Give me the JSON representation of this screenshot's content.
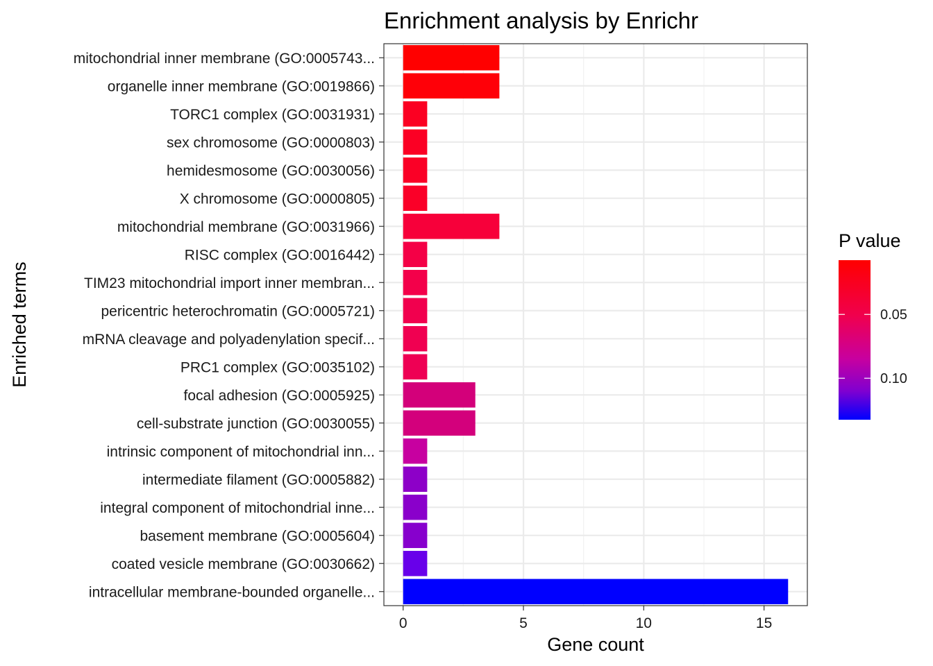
{
  "chart_data": {
    "type": "bar",
    "orientation": "horizontal",
    "title": "Enrichment analysis by Enrichr",
    "xlabel": "Gene count",
    "ylabel": "Enriched terms",
    "xlim": [
      -0.8,
      16.8
    ],
    "xticks": [
      0,
      5,
      10,
      15
    ],
    "grid": true,
    "legend": {
      "title": "P value",
      "position": "right",
      "ticks": [
        0.05,
        0.1
      ],
      "ticks_text": [
        "0.05",
        "0.10"
      ],
      "range": [
        0.0075,
        0.1325
      ]
    },
    "categories": [
      "mitochondrial inner membrane (GO:0005743...",
      "organelle inner membrane (GO:0019866)",
      "TORC1 complex (GO:0031931)",
      "sex chromosome (GO:0000803)",
      "hemidesmosome (GO:0030056)",
      "X chromosome (GO:0000805)",
      "mitochondrial membrane (GO:0031966)",
      "RISC complex (GO:0016442)",
      "TIM23 mitochondrial import inner membran...",
      "pericentric heterochromatin (GO:0005721)",
      "mRNA cleavage and polyadenylation specif...",
      "PRC1 complex (GO:0035102)",
      "focal adhesion (GO:0005925)",
      "cell-substrate junction (GO:0030055)",
      "intrinsic component of mitochondrial inn...",
      "intermediate filament (GO:0005882)",
      "integral component of mitochondrial inne...",
      "basement membrane (GO:0005604)",
      "coated vesicle membrane (GO:0030662)",
      "intracellular membrane-bounded organelle..."
    ],
    "values": [
      4,
      4,
      1,
      1,
      1,
      1,
      4,
      1,
      1,
      1,
      1,
      1,
      3,
      3,
      1,
      1,
      1,
      1,
      1,
      16
    ],
    "colors": [
      "#ff0000",
      "#ff0008",
      "#fb0022",
      "#fb0024",
      "#fa0026",
      "#fa0028",
      "#f7003a",
      "#f40046",
      "#f3004a",
      "#f1004e",
      "#f00051",
      "#ee0054",
      "#d3007a",
      "#d3007c",
      "#c700a0",
      "#8d00c8",
      "#8a00cb",
      "#8700cd",
      "#6800ea",
      "#0000ff"
    ],
    "color_scale": {
      "high_p": "#0000ff",
      "low_p": "#ff0000"
    }
  }
}
